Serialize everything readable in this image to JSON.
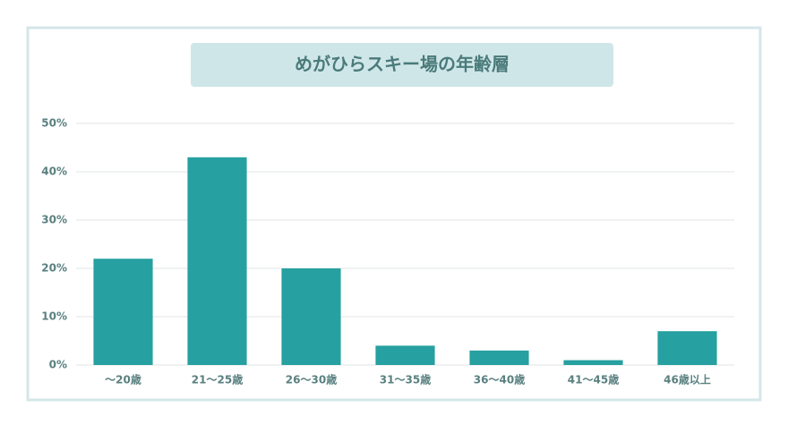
{
  "chart_data": {
    "type": "bar",
    "title": "めがひらスキー場の年齢層",
    "categories": [
      "〜20歳",
      "21〜25歳",
      "26〜30歳",
      "31〜35歳",
      "36〜40歳",
      "41〜45歳",
      "46歳以上"
    ],
    "values": [
      22,
      43,
      20,
      4,
      3,
      1,
      7
    ],
    "color": "#26a0a0",
    "ylim": [
      0,
      50
    ],
    "yticks": [
      {
        "value": 0,
        "label": "0%"
      },
      {
        "value": 10,
        "label": "10%"
      },
      {
        "value": 20,
        "label": "20%"
      },
      {
        "value": 30,
        "label": "30%"
      },
      {
        "value": 40,
        "label": "40%"
      },
      {
        "value": 50,
        "label": "50%"
      }
    ],
    "grid": true
  }
}
